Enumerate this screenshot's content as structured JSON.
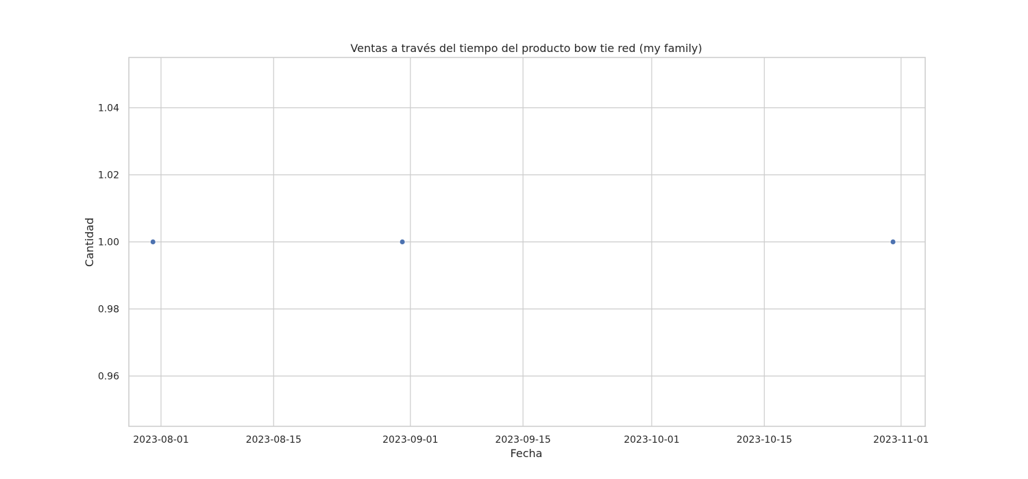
{
  "chart_data": {
    "type": "scatter",
    "title": "Ventas a través del tiempo del producto bow tie red (my family)",
    "xlabel": "Fecha",
    "ylabel": "Cantidad",
    "x_scale": "date",
    "xlim": [
      "2023-07-28",
      "2023-11-04"
    ],
    "ylim": [
      0.945,
      1.055
    ],
    "x_ticks": [
      "2023-08-01",
      "2023-08-15",
      "2023-09-01",
      "2023-09-15",
      "2023-10-01",
      "2023-10-15",
      "2023-11-01"
    ],
    "y_ticks": [
      0.96,
      0.98,
      1.0,
      1.02,
      1.04
    ],
    "y_tick_labels": [
      "0.96",
      "0.98",
      "1.00",
      "1.02",
      "1.04"
    ],
    "grid": true,
    "marker_color": "#4c72b0",
    "series": [
      {
        "x": [
          "2023-07-31",
          "2023-08-31",
          "2023-10-31"
        ],
        "y": [
          1.0,
          1.0,
          1.0
        ]
      }
    ]
  }
}
